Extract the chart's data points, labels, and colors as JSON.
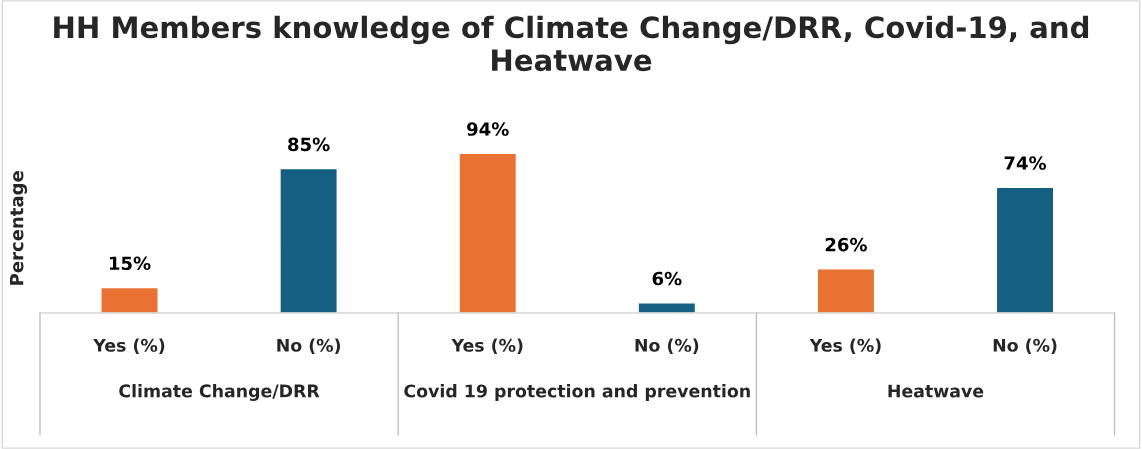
{
  "chart_data": {
    "type": "bar",
    "title": "HH Members knowledge of Climate Change/DRR, Covid-19, and Heatwave",
    "ylabel": "Percentage",
    "categories": [
      "Yes (%)",
      "No (%)",
      "Yes (%)",
      "No (%)",
      "Yes (%)",
      "No (%)"
    ],
    "values": [
      15,
      85,
      94,
      6,
      26,
      74
    ],
    "colors": [
      "#e97132",
      "#156082",
      "#e97132",
      "#156082",
      "#e97132",
      "#156082"
    ],
    "data_labels": true,
    "value_labels": [
      "15%",
      "85%",
      "94%",
      "6%",
      "26%",
      "74%"
    ],
    "annotations": [
      "Climate Change/DRR",
      "Covid 19 protection and prevention",
      "Heatwave"
    ],
    "legend": false
  }
}
